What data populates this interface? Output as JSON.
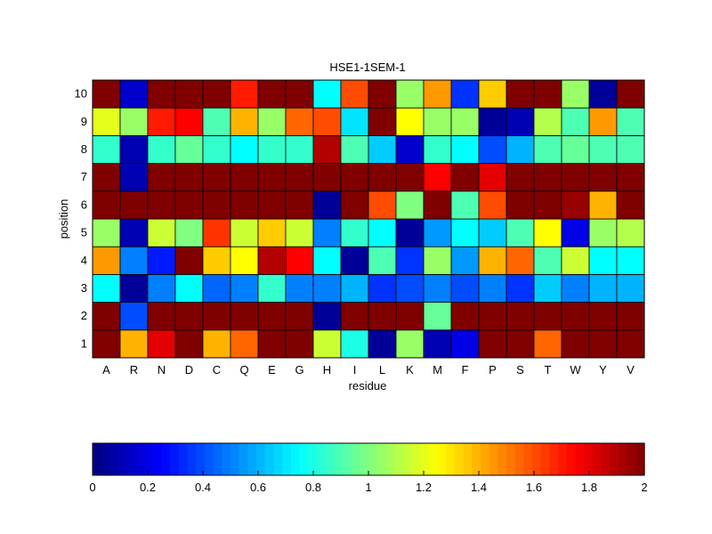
{
  "chart_data": {
    "type": "heatmap",
    "title": "HSE1-1SEM-1",
    "xlabel": "residue",
    "ylabel": "position",
    "x_categories": [
      "A",
      "R",
      "N",
      "D",
      "C",
      "Q",
      "E",
      "G",
      "H",
      "I",
      "L",
      "K",
      "M",
      "F",
      "P",
      "S",
      "T",
      "W",
      "Y",
      "V"
    ],
    "y_categories": [
      "1",
      "2",
      "3",
      "4",
      "5",
      "6",
      "7",
      "8",
      "9",
      "10"
    ],
    "values": [
      [
        2.0,
        1.4,
        1.8,
        2.0,
        1.4,
        1.55,
        2.0,
        2.0,
        1.15,
        0.8,
        0.05,
        1.05,
        0.1,
        0.2,
        2.0,
        2.0,
        1.55,
        2.0,
        2.0,
        2.0
      ],
      [
        2.0,
        0.4,
        2.0,
        2.0,
        2.0,
        2.0,
        2.0,
        2.0,
        0.05,
        2.0,
        2.0,
        2.0,
        0.95,
        2.0,
        2.0,
        2.0,
        2.0,
        2.0,
        2.0,
        2.0
      ],
      [
        0.75,
        0.05,
        0.5,
        0.75,
        0.45,
        0.5,
        0.85,
        0.5,
        0.5,
        0.6,
        0.35,
        0.4,
        0.5,
        0.4,
        0.5,
        0.35,
        0.65,
        0.5,
        0.6,
        0.6
      ],
      [
        1.45,
        0.5,
        0.3,
        2.0,
        1.35,
        1.25,
        1.9,
        1.75,
        0.75,
        0.05,
        0.9,
        0.35,
        1.05,
        0.55,
        1.4,
        1.55,
        0.9,
        1.15,
        0.75,
        0.75
      ],
      [
        1.05,
        0.1,
        1.15,
        1.0,
        1.65,
        1.15,
        1.35,
        1.15,
        0.5,
        0.85,
        0.75,
        0.05,
        0.55,
        0.75,
        0.65,
        0.9,
        1.25,
        0.2,
        1.05,
        1.1
      ],
      [
        2.0,
        2.0,
        2.0,
        2.0,
        2.0,
        2.0,
        2.0,
        2.0,
        0.05,
        2.0,
        1.6,
        1.0,
        2.0,
        0.9,
        1.6,
        2.0,
        2.0,
        1.95,
        1.4,
        2.0
      ],
      [
        2.0,
        0.1,
        2.0,
        2.0,
        2.0,
        2.0,
        2.0,
        2.0,
        2.0,
        2.0,
        2.0,
        2.0,
        1.75,
        2.0,
        1.8,
        2.0,
        2.0,
        2.0,
        2.0,
        2.0
      ],
      [
        0.85,
        0.1,
        0.85,
        0.95,
        0.85,
        0.75,
        0.85,
        0.85,
        1.9,
        0.9,
        0.65,
        0.15,
        0.85,
        0.75,
        0.4,
        0.6,
        0.9,
        0.95,
        0.9,
        0.9
      ],
      [
        1.2,
        1.05,
        1.7,
        1.75,
        0.9,
        1.4,
        1.05,
        1.55,
        1.6,
        0.7,
        2.0,
        1.25,
        1.05,
        1.05,
        0.05,
        0.1,
        1.1,
        0.9,
        1.45,
        0.9
      ],
      [
        2.0,
        0.15,
        2.0,
        2.0,
        2.0,
        1.7,
        2.0,
        2.0,
        0.75,
        1.6,
        2.0,
        1.05,
        1.45,
        0.35,
        1.35,
        2.0,
        2.0,
        1.05,
        0.05,
        2.0
      ]
    ],
    "colormap": "jet",
    "vmin": 0,
    "vmax": 2,
    "colorbar_ticks": [
      "0",
      "0.2",
      "0.4",
      "0.6",
      "0.8",
      "1",
      "1.2",
      "1.4",
      "1.6",
      "1.8",
      "2"
    ]
  }
}
